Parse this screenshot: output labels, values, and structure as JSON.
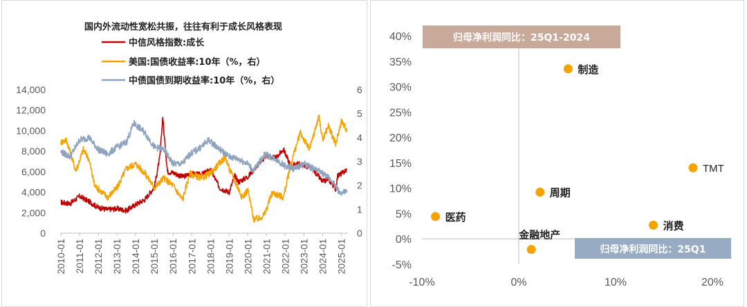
{
  "chart_data": [
    {
      "type": "line",
      "title": "国内外流动性宽松共振，往往有利于成长风格表现",
      "series": [
        {
          "name": "中信风格指数:成长",
          "axis": "left",
          "color": "#c00000",
          "x": [
            2010.0,
            2010.5,
            2011.0,
            2011.5,
            2012.0,
            2012.5,
            2013.0,
            2013.5,
            2014.0,
            2014.5,
            2015.0,
            2015.3,
            2015.45,
            2015.55,
            2015.7,
            2016.0,
            2016.5,
            2017.0,
            2017.5,
            2018.0,
            2018.5,
            2019.0,
            2019.3,
            2019.5,
            2020.0,
            2020.5,
            2021.0,
            2021.5,
            2021.9,
            2022.3,
            2022.6,
            2023.0,
            2023.5,
            2024.0,
            2024.3,
            2024.7,
            2024.8,
            2025.0,
            2025.3
          ],
          "values": [
            3000,
            2900,
            3600,
            3100,
            2500,
            2300,
            2400,
            2200,
            2800,
            3300,
            4500,
            7500,
            11400,
            9000,
            6000,
            5900,
            5500,
            5800,
            5700,
            6200,
            4400,
            4000,
            5600,
            5000,
            5500,
            6600,
            7600,
            7300,
            8200,
            6500,
            6800,
            6600,
            6200,
            5000,
            5300,
            4300,
            5600,
            5800,
            6200
          ]
        },
        {
          "name": "美国:国债收益率:10年（%，右）",
          "axis": "right",
          "color": "#f5a300",
          "x": [
            2010.0,
            2010.3,
            2010.8,
            2011.2,
            2011.5,
            2011.8,
            2012.5,
            2013.0,
            2013.5,
            2014.0,
            2014.5,
            2015.0,
            2015.5,
            2016.0,
            2016.5,
            2016.9,
            2017.5,
            2018.0,
            2018.8,
            2019.0,
            2019.7,
            2020.0,
            2020.3,
            2020.6,
            2020.9,
            2021.3,
            2021.9,
            2022.3,
            2022.8,
            2023.3,
            2023.8,
            2024.0,
            2024.3,
            2024.7,
            2025.0,
            2025.3
          ],
          "values": [
            3.8,
            3.9,
            2.6,
            3.5,
            3.1,
            2.0,
            1.5,
            1.9,
            2.7,
            2.9,
            2.5,
            1.9,
            2.3,
            2.0,
            1.4,
            2.5,
            2.3,
            2.5,
            3.2,
            2.7,
            1.5,
            1.8,
            0.6,
            0.6,
            0.8,
            1.7,
            1.5,
            2.9,
            4.2,
            3.5,
            4.9,
            3.9,
            4.5,
            3.7,
            4.7,
            4.3
          ]
        },
        {
          "name": "中债国债到期收益率:10年（%，右）",
          "axis": "right",
          "color": "#8ea3bd",
          "x": [
            2010.0,
            2010.5,
            2011.0,
            2011.5,
            2012.0,
            2012.5,
            2013.0,
            2013.5,
            2013.9,
            2014.5,
            2015.0,
            2015.5,
            2016.0,
            2016.5,
            2016.9,
            2017.5,
            2017.9,
            2018.5,
            2019.0,
            2019.5,
            2020.0,
            2020.3,
            2020.9,
            2021.5,
            2022.0,
            2022.5,
            2023.0,
            2023.5,
            2024.0,
            2024.5,
            2024.9,
            2025.3
          ],
          "values": [
            3.4,
            3.2,
            3.9,
            4.0,
            3.5,
            3.3,
            3.6,
            3.8,
            4.6,
            4.2,
            3.6,
            3.5,
            2.9,
            2.9,
            3.3,
            3.6,
            3.9,
            3.5,
            3.2,
            3.1,
            2.9,
            2.6,
            3.3,
            3.1,
            2.8,
            2.7,
            2.9,
            2.7,
            2.5,
            2.2,
            1.7,
            1.7
          ]
        }
      ],
      "xticks": [
        "2010-01",
        "2011-01",
        "2012-01",
        "2013-01",
        "2014-01",
        "2015-01",
        "2016-01",
        "2017-01",
        "2018-01",
        "2019-01",
        "2020-01",
        "2021-01",
        "2022-01",
        "2023-01",
        "2024-01",
        "2025-01"
      ],
      "yticks_left": [
        "0",
        "2,000",
        "4,000",
        "6,000",
        "8,000",
        "10,000",
        "12,000",
        "14,000"
      ],
      "yticks_right": [
        "0",
        "1",
        "2",
        "3",
        "4",
        "5",
        "6"
      ],
      "ylim_left": [
        0,
        14000
      ],
      "ylim_right": [
        0,
        6
      ],
      "legend_placement": "top"
    },
    {
      "type": "scatter",
      "xlabel": "归母净利润同比：25Q1",
      "ylabel": "归母净利润同比：25Q1-2024",
      "color": "#f5a300",
      "points": [
        {
          "label": "制造",
          "x": 5.1,
          "y": 33.5
        },
        {
          "label": "TMT",
          "x": 18.0,
          "y": 14.0
        },
        {
          "label": "周期",
          "x": 2.2,
          "y": 9.2
        },
        {
          "label": "医药",
          "x": -8.6,
          "y": 4.4
        },
        {
          "label": "消费",
          "x": 13.9,
          "y": 2.7
        },
        {
          "label": "金融地产",
          "x": 1.3,
          "y": -2.1
        }
      ],
      "xticks": [
        "-10%",
        "0%",
        "10%",
        "20%"
      ],
      "yticks": [
        "-5%",
        "0%",
        "5%",
        "10%",
        "15%",
        "20%",
        "25%",
        "30%",
        "35%",
        "40%"
      ],
      "xlim": [
        -10,
        20
      ],
      "ylim": [
        -5,
        40
      ],
      "banner_top_color": "#c9a99a",
      "banner_bottom_color": "#97acc2"
    }
  ]
}
